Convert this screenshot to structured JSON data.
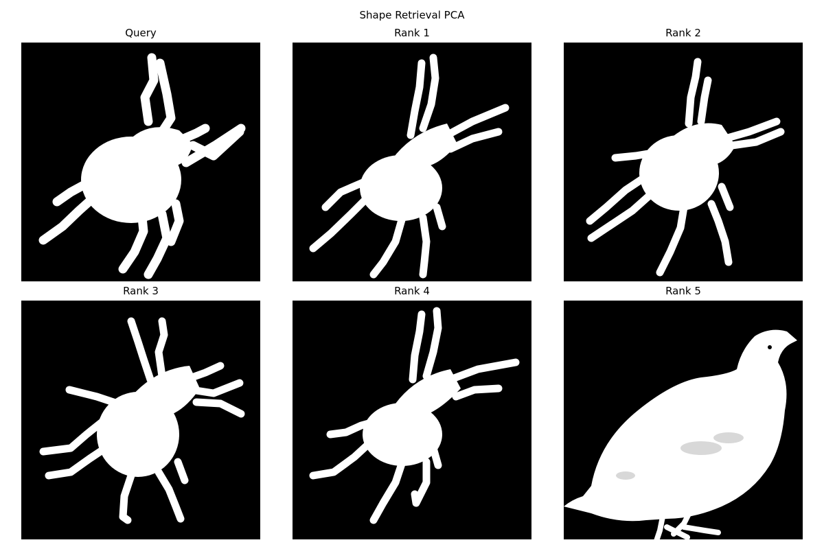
{
  "figure": {
    "title": "Shape Retrieval PCA"
  },
  "panels": [
    {
      "title": "Query",
      "shape": "beetle-silhouette"
    },
    {
      "title": "Rank 1",
      "shape": "beetle-silhouette"
    },
    {
      "title": "Rank 2",
      "shape": "beetle-silhouette"
    },
    {
      "title": "Rank 3",
      "shape": "beetle-silhouette"
    },
    {
      "title": "Rank 4",
      "shape": "beetle-silhouette"
    },
    {
      "title": "Rank 5",
      "shape": "bird-silhouette"
    }
  ],
  "colors": {
    "background": "#000000",
    "silhouette": "#ffffff"
  }
}
